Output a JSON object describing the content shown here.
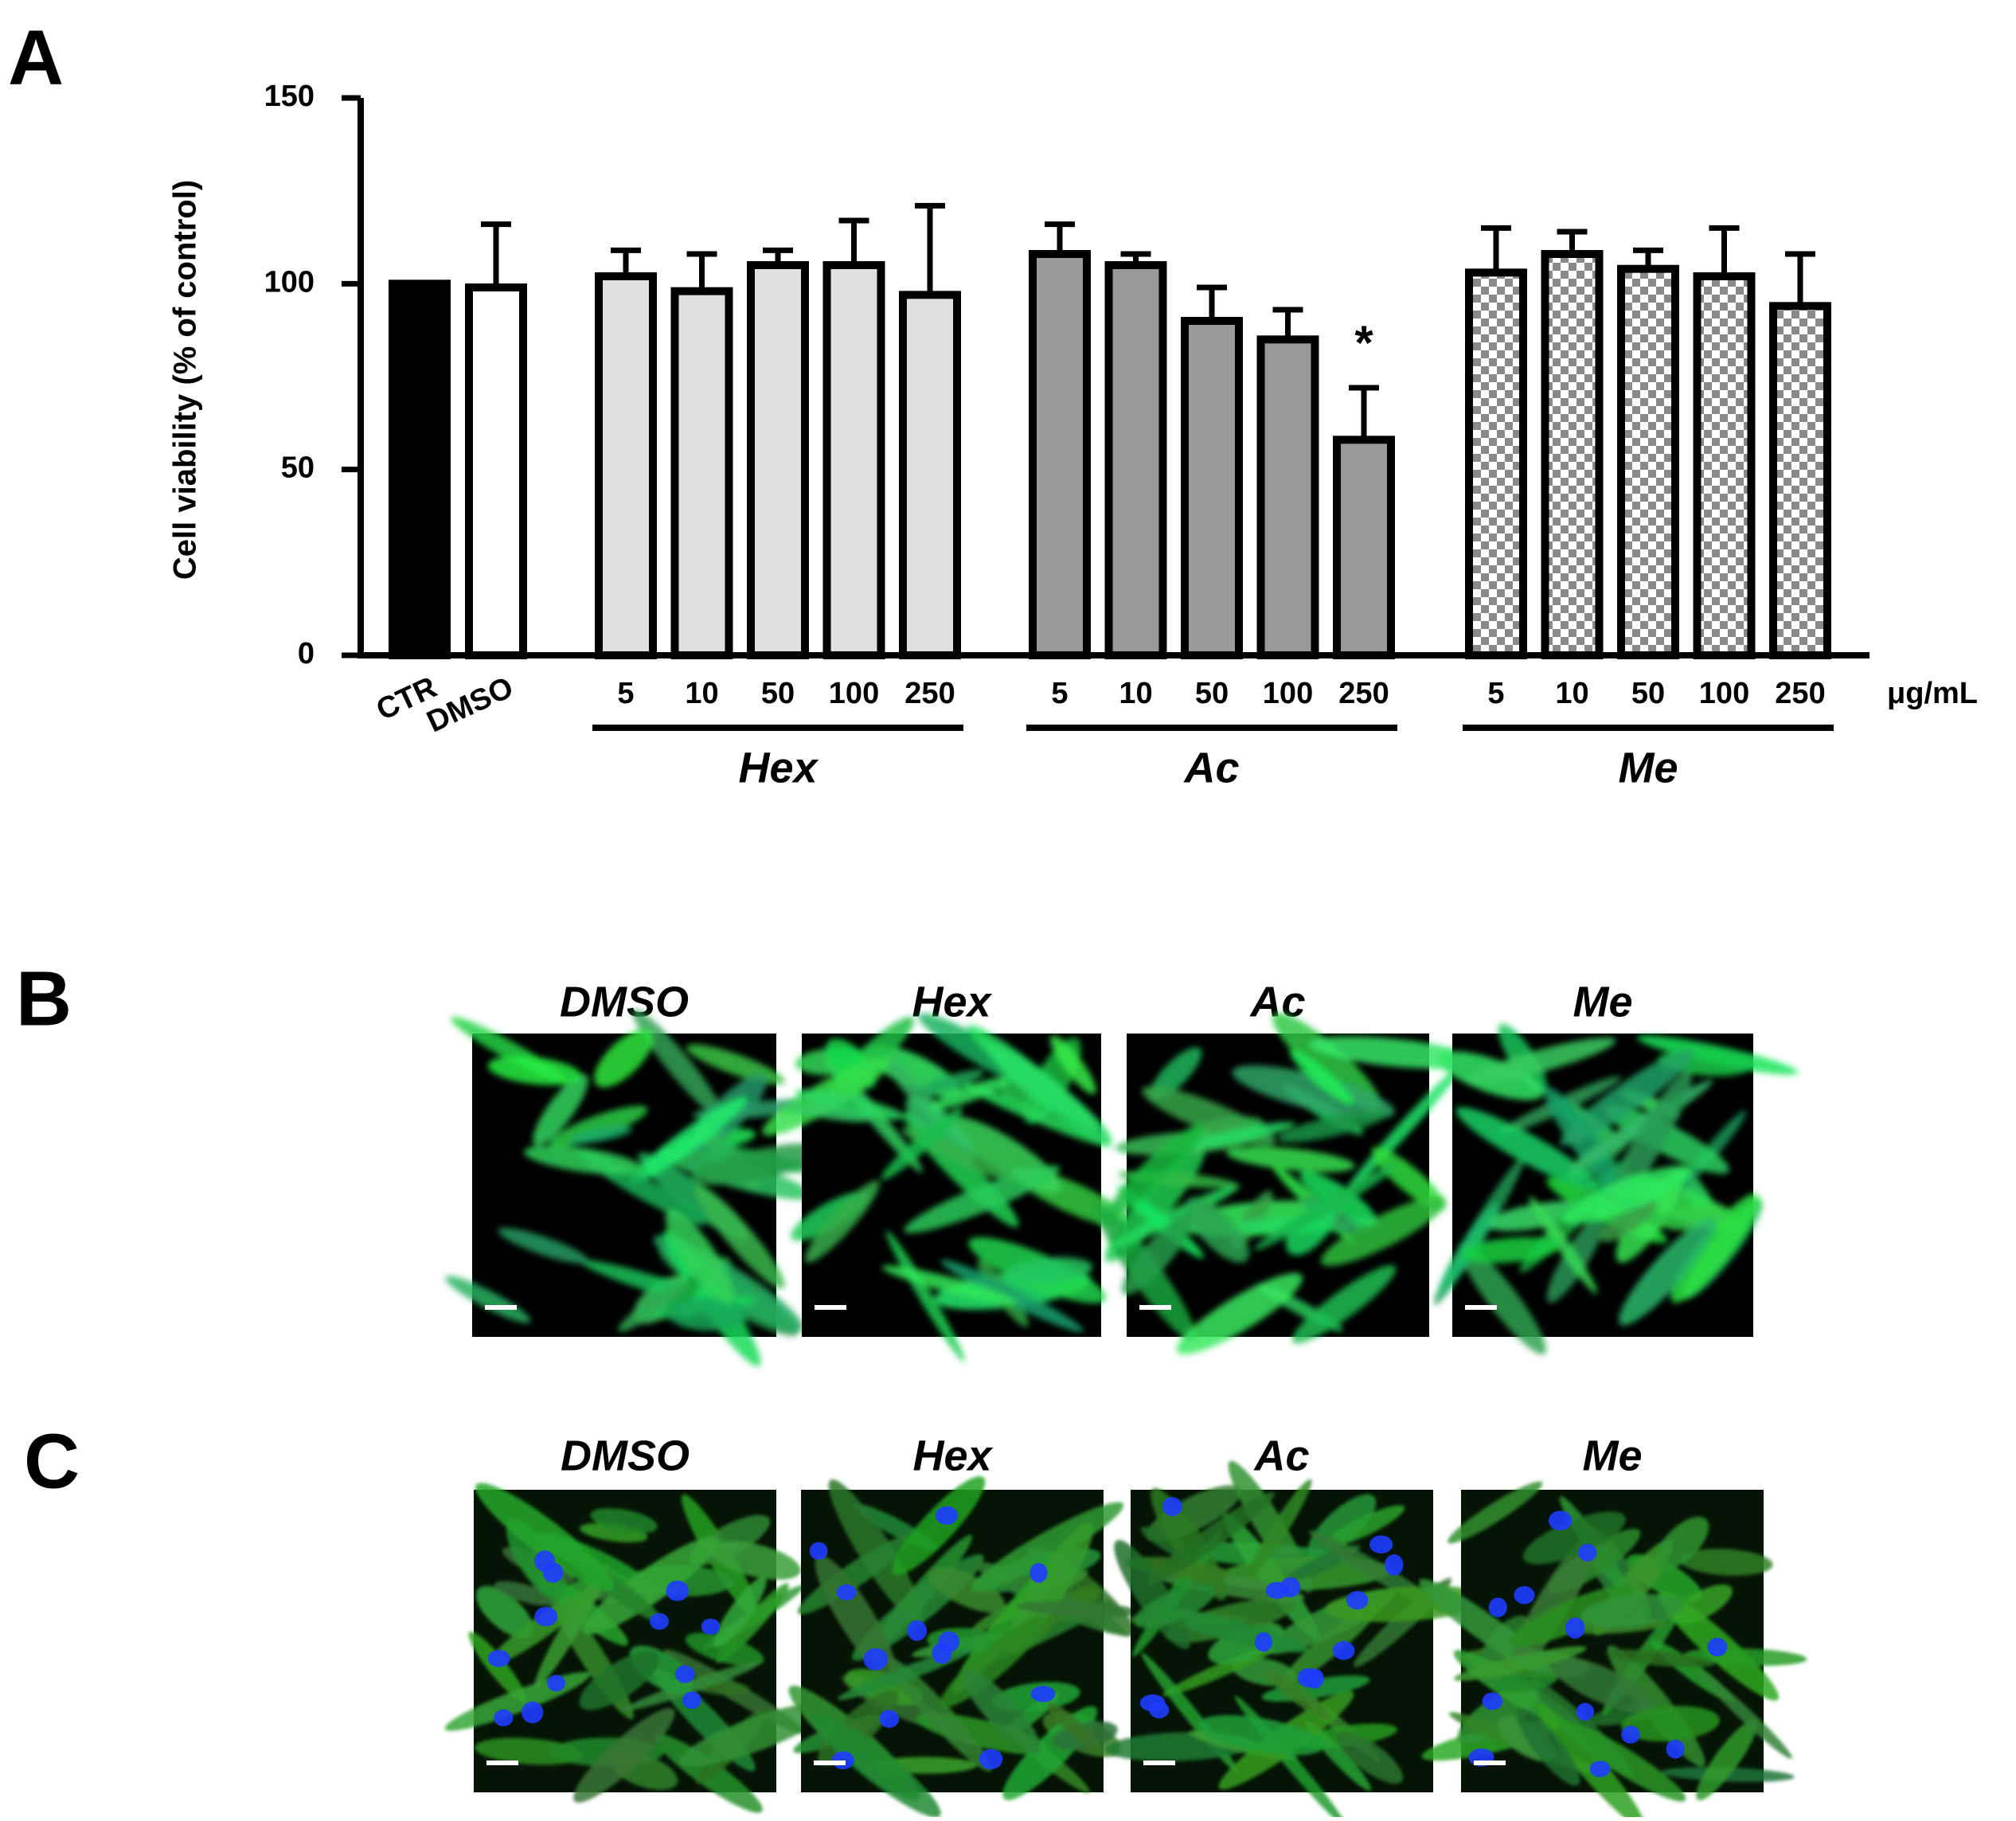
{
  "panels": [
    {
      "label": "A"
    },
    {
      "label": "B",
      "titles": [
        "DMSO",
        "Hex",
        "Ac",
        "Me"
      ]
    },
    {
      "label": "C",
      "titles": [
        "DMSO",
        "Hex",
        "Ac",
        "Me"
      ]
    }
  ],
  "chart_data": {
    "type": "bar",
    "ylabel": "Cell viability (% of control)",
    "ylim": [
      0,
      150
    ],
    "yticks": [
      0,
      50,
      100,
      150
    ],
    "unit_label": "μg/mL",
    "controls": {
      "categories": [
        "CTR",
        "DMSO"
      ],
      "values": [
        100,
        99
      ],
      "errors": [
        null,
        17
      ],
      "fills": [
        "#000000",
        "#ffffff"
      ]
    },
    "groups": [
      {
        "name": "Hex",
        "categories": [
          "5",
          "10",
          "50",
          "100",
          "250"
        ],
        "values": [
          102,
          98,
          105,
          105,
          97
        ],
        "errors": [
          7,
          10,
          4,
          12,
          24
        ],
        "fill": "#e0e0e0"
      },
      {
        "name": "Ac",
        "categories": [
          "5",
          "10",
          "50",
          "100",
          "250"
        ],
        "values": [
          108,
          105,
          90,
          85,
          58
        ],
        "errors": [
          8,
          3,
          9,
          8,
          14
        ],
        "fill": "#999999",
        "marks": [
          null,
          null,
          null,
          null,
          "*"
        ]
      },
      {
        "name": "Me",
        "categories": [
          "5",
          "10",
          "50",
          "100",
          "250"
        ],
        "values": [
          103,
          108,
          104,
          102,
          94
        ],
        "errors": [
          12,
          6,
          5,
          13,
          14
        ],
        "fill": "checker"
      }
    ]
  }
}
